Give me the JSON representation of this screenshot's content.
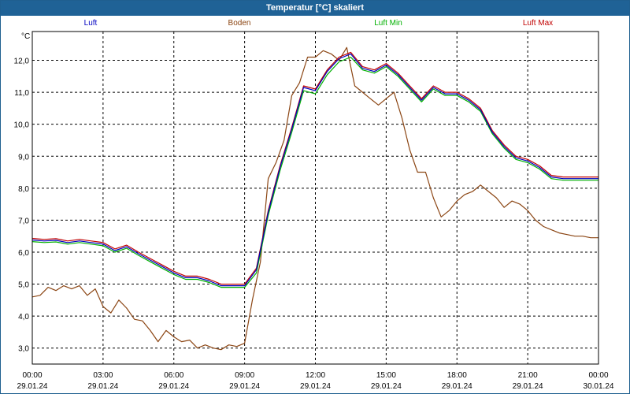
{
  "chart_data": {
    "type": "line",
    "title": "Temperatur [°C] skaliert",
    "ylabel": "°C",
    "ylim": [
      2.5,
      12.9
    ],
    "yticks": [
      "3,0",
      "4,0",
      "5,0",
      "6,0",
      "7,0",
      "8,0",
      "9,0",
      "10,0",
      "11,0",
      "12,0"
    ],
    "ytick_values": [
      3,
      4,
      5,
      6,
      7,
      8,
      9,
      10,
      11,
      12
    ],
    "xlim": [
      0,
      24
    ],
    "xticks": [
      {
        "time": "00:00",
        "date": "29.01.24"
      },
      {
        "time": "03:00",
        "date": "29.01.24"
      },
      {
        "time": "06:00",
        "date": "29.01.24"
      },
      {
        "time": "09:00",
        "date": "29.01.24"
      },
      {
        "time": "12:00",
        "date": "29.01.24"
      },
      {
        "time": "15:00",
        "date": "29.01.24"
      },
      {
        "time": "18:00",
        "date": "29.01.24"
      },
      {
        "time": "21:00",
        "date": "29.01.24"
      },
      {
        "time": "00:00",
        "date": "30.01.24"
      }
    ],
    "grid": true,
    "series": [
      {
        "name": "Luft Max",
        "color": "#c00000",
        "x": [
          0,
          0.5,
          1,
          1.5,
          2,
          2.5,
          3,
          3.5,
          4,
          4.5,
          5,
          5.5,
          6,
          6.5,
          7,
          7.5,
          8,
          8.5,
          9,
          9.5,
          10,
          10.5,
          11,
          11.5,
          12,
          12.5,
          13,
          13.5,
          14,
          14.5,
          15,
          15.5,
          16,
          16.5,
          17,
          17.5,
          18,
          18.5,
          19,
          19.5,
          20,
          20.5,
          21,
          21.5,
          22,
          22.5,
          23,
          23.5,
          24
        ],
        "values": [
          6.43,
          6.4,
          6.42,
          6.35,
          6.4,
          6.35,
          6.3,
          6.1,
          6.22,
          6.0,
          5.8,
          5.6,
          5.4,
          5.25,
          5.25,
          5.15,
          5.0,
          5.0,
          5.0,
          5.5,
          7.3,
          8.7,
          9.9,
          11.2,
          11.1,
          11.7,
          12.1,
          12.25,
          11.8,
          11.7,
          11.9,
          11.6,
          11.2,
          10.8,
          11.2,
          11.0,
          11.0,
          10.8,
          10.5,
          9.8,
          9.35,
          9.0,
          8.9,
          8.7,
          8.4,
          8.35,
          8.35,
          8.35,
          8.35
        ]
      },
      {
        "name": "Luft",
        "color": "#0000c0",
        "x": [
          0,
          0.5,
          1,
          1.5,
          2,
          2.5,
          3,
          3.5,
          4,
          4.5,
          5,
          5.5,
          6,
          6.5,
          7,
          7.5,
          8,
          8.5,
          9,
          9.5,
          10,
          10.5,
          11,
          11.5,
          12,
          12.5,
          13,
          13.5,
          14,
          14.5,
          15,
          15.5,
          16,
          16.5,
          17,
          17.5,
          18,
          18.5,
          19,
          19.5,
          20,
          20.5,
          21,
          21.5,
          22,
          22.5,
          23,
          23.5,
          24
        ],
        "values": [
          6.38,
          6.35,
          6.37,
          6.3,
          6.35,
          6.3,
          6.25,
          6.05,
          6.17,
          5.95,
          5.75,
          5.55,
          5.35,
          5.2,
          5.2,
          5.1,
          4.95,
          4.95,
          4.95,
          5.45,
          7.25,
          8.65,
          9.85,
          11.15,
          11.05,
          11.65,
          12.05,
          12.2,
          11.75,
          11.65,
          11.85,
          11.55,
          11.15,
          10.75,
          11.15,
          10.95,
          10.95,
          10.75,
          10.45,
          9.75,
          9.3,
          8.95,
          8.85,
          8.65,
          8.35,
          8.3,
          8.3,
          8.3,
          8.3
        ]
      },
      {
        "name": "Luft Min",
        "color": "#00b000",
        "x": [
          0,
          0.5,
          1,
          1.5,
          2,
          2.5,
          3,
          3.5,
          4,
          4.5,
          5,
          5.5,
          6,
          6.5,
          7,
          7.5,
          8,
          8.5,
          9,
          9.5,
          10,
          10.5,
          11,
          11.5,
          12,
          12.5,
          13,
          13.5,
          14,
          14.5,
          15,
          15.5,
          16,
          16.5,
          17,
          17.5,
          18,
          18.5,
          19,
          19.5,
          20,
          20.5,
          21,
          21.5,
          22,
          22.5,
          23,
          23.5,
          24
        ],
        "values": [
          6.33,
          6.3,
          6.32,
          6.25,
          6.3,
          6.25,
          6.2,
          6.0,
          6.12,
          5.9,
          5.7,
          5.5,
          5.3,
          5.15,
          5.15,
          5.05,
          4.9,
          4.9,
          4.9,
          5.35,
          7.15,
          8.55,
          9.75,
          11.05,
          10.95,
          11.55,
          11.95,
          12.1,
          11.7,
          11.6,
          11.8,
          11.5,
          11.1,
          10.7,
          11.1,
          10.9,
          10.9,
          10.7,
          10.4,
          9.7,
          9.25,
          8.9,
          8.8,
          8.6,
          8.3,
          8.25,
          8.25,
          8.25,
          8.25
        ]
      },
      {
        "name": "Boden",
        "color": "#8b4513",
        "x": [
          0,
          0.33,
          0.67,
          1.0,
          1.33,
          1.67,
          2.0,
          2.33,
          2.67,
          3.0,
          3.33,
          3.67,
          4.0,
          4.33,
          4.67,
          5.0,
          5.33,
          5.67,
          6.0,
          6.33,
          6.67,
          7.0,
          7.33,
          7.67,
          8.0,
          8.33,
          8.67,
          9.0,
          9.33,
          9.67,
          10.0,
          10.33,
          10.67,
          11.0,
          11.33,
          11.67,
          12.0,
          12.33,
          12.67,
          13.0,
          13.33,
          13.67,
          14.0,
          14.33,
          14.67,
          15.0,
          15.33,
          15.67,
          16.0,
          16.33,
          16.67,
          17.0,
          17.33,
          17.67,
          18.0,
          18.33,
          18.67,
          19.0,
          19.33,
          19.67,
          20.0,
          20.33,
          20.67,
          21.0,
          21.33,
          21.67,
          22.0,
          22.33,
          22.67,
          23.0,
          23.33,
          23.67,
          24.0
        ],
        "values": [
          4.6,
          4.65,
          4.9,
          4.8,
          4.95,
          4.85,
          4.95,
          4.65,
          4.85,
          4.3,
          4.1,
          4.5,
          4.25,
          3.9,
          3.85,
          3.55,
          3.2,
          3.55,
          3.35,
          3.2,
          3.25,
          3.0,
          3.1,
          3.0,
          2.95,
          3.1,
          3.05,
          3.15,
          4.5,
          5.7,
          8.3,
          8.8,
          9.5,
          10.9,
          11.3,
          12.1,
          12.1,
          12.3,
          12.2,
          12.0,
          12.4,
          11.2,
          11.0,
          10.8,
          10.6,
          10.8,
          11.0,
          10.2,
          9.2,
          8.5,
          8.5,
          7.7,
          7.1,
          7.3,
          7.6,
          7.8,
          7.9,
          8.1,
          7.9,
          7.7,
          7.4,
          7.6,
          7.5,
          7.3,
          7.0,
          6.8,
          6.7,
          6.6,
          6.55,
          6.5,
          6.5,
          6.45,
          6.45
        ]
      }
    ]
  }
}
